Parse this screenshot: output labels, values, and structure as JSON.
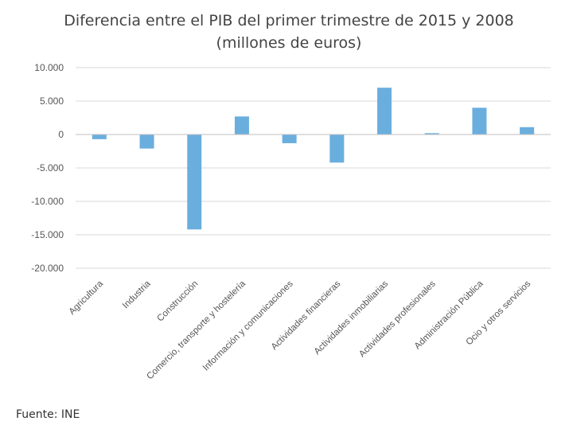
{
  "chart_data": {
    "type": "bar",
    "title_lines": [
      "Diferencia entre el PIB del primer trimestre de 2015 y 2008",
      "(millones de euros)"
    ],
    "categories": [
      "Agricultura",
      "Industria",
      "Construcción",
      "Comercio, transporte y hostelería",
      "Información y comunicaciones",
      "Actividades financieras",
      "Actividades inmobiliarias",
      "Actividades profesionales",
      "Administración Pública",
      "Ocio y otros servicios"
    ],
    "values": [
      -700,
      -2100,
      -14200,
      2700,
      -1300,
      -4200,
      7000,
      200,
      4000,
      1100
    ],
    "ylim": [
      -20000,
      10000
    ],
    "yticks": [
      10000,
      5000,
      0,
      -5000,
      -10000,
      -15000,
      -20000
    ],
    "ytick_labels": [
      "10.000",
      "5.000",
      "0",
      "-5.000",
      "-10.000",
      "-15.000",
      "-20.000"
    ],
    "xlabel": "",
    "ylabel": "",
    "grid": true,
    "bar_color": "#6aaede",
    "grid_color": "#d9d9d9",
    "axis_color": "#bfbfbf"
  },
  "source": "Fuente: INE"
}
